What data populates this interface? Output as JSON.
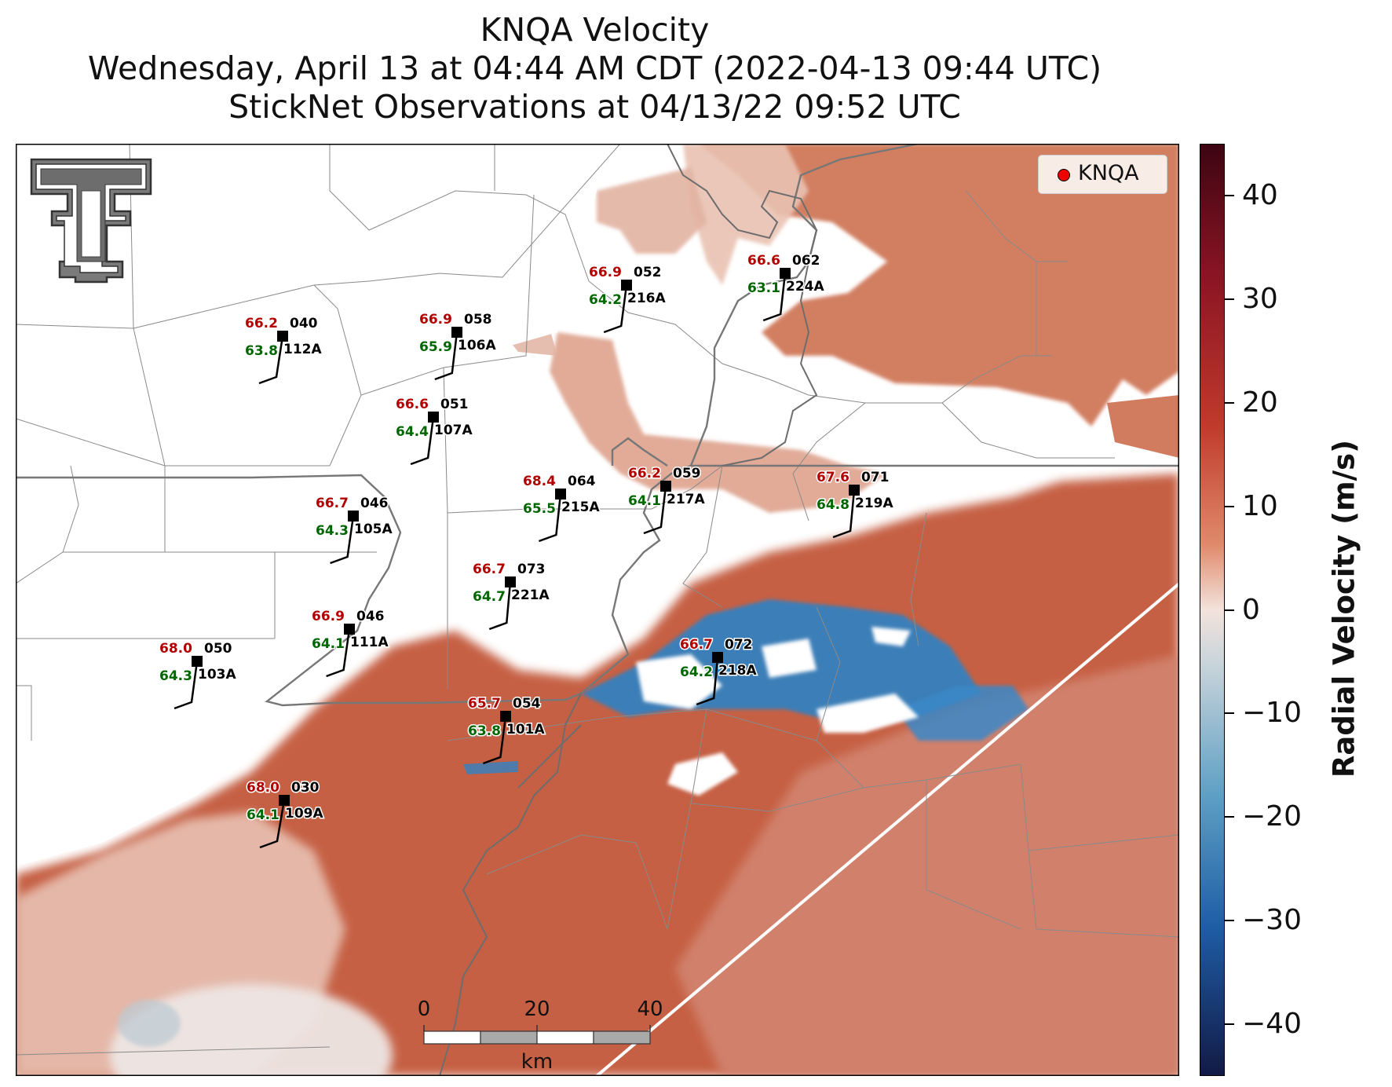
{
  "title": {
    "line1": "KNQA Velocity",
    "line2": "Wednesday, April 13 at 04:44 AM CDT (2022-04-13 09:44 UTC)",
    "line3": "StickNet Observations at 04/13/22 09:52 UTC"
  },
  "legend": {
    "label": "KNQA",
    "marker_color": "#ff0000"
  },
  "logo": {
    "name": "texas-tech-double-t-logo"
  },
  "colorbar": {
    "title": "Radial Velocity (m/s)",
    "min": -45,
    "max": 45,
    "ticks": [
      "40",
      "30",
      "20",
      "10",
      "0",
      "−10",
      "−20",
      "−30",
      "−40"
    ],
    "tick_values": [
      40,
      30,
      20,
      10,
      0,
      -10,
      -20,
      -30,
      -40
    ]
  },
  "scale_bar": {
    "labels": [
      "0",
      "20",
      "40"
    ],
    "unit": "km"
  },
  "colors": {
    "temperature": "#b30000",
    "dewpoint": "#006600",
    "inbound_velocity": "#2f82c4",
    "outbound_velocity": "#c55a3c"
  },
  "stations": [
    {
      "id": "112A",
      "temp": "66.2",
      "dewpoint": "63.8",
      "wind_dir": "040"
    },
    {
      "id": "106A",
      "temp": "66.9",
      "dewpoint": "65.9",
      "wind_dir": "058"
    },
    {
      "id": "216A",
      "temp": "66.9",
      "dewpoint": "64.2",
      "wind_dir": "052"
    },
    {
      "id": "224A",
      "temp": "66.6",
      "dewpoint": "63.1",
      "wind_dir": "062"
    },
    {
      "id": "107A",
      "temp": "66.6",
      "dewpoint": "64.4",
      "wind_dir": "051"
    },
    {
      "id": "215A",
      "temp": "68.4",
      "dewpoint": "65.5",
      "wind_dir": "064"
    },
    {
      "id": "217A",
      "temp": "66.2",
      "dewpoint": "64.1",
      "wind_dir": "059"
    },
    {
      "id": "219A",
      "temp": "67.6",
      "dewpoint": "64.8",
      "wind_dir": "071"
    },
    {
      "id": "105A",
      "temp": "66.7",
      "dewpoint": "64.3",
      "wind_dir": "046"
    },
    {
      "id": "221A",
      "temp": "66.7",
      "dewpoint": "64.7",
      "wind_dir": "073"
    },
    {
      "id": "111A",
      "temp": "66.9",
      "dewpoint": "64.1",
      "wind_dir": "046"
    },
    {
      "id": "103A",
      "temp": "68.0",
      "dewpoint": "64.3",
      "wind_dir": "050"
    },
    {
      "id": "218A",
      "temp": "66.7",
      "dewpoint": "64.2",
      "wind_dir": "072"
    },
    {
      "id": "101A",
      "temp": "65.7",
      "dewpoint": "63.8",
      "wind_dir": "054"
    },
    {
      "id": "109A",
      "temp": "68.0",
      "dewpoint": "64.1",
      "wind_dir": "030"
    }
  ]
}
